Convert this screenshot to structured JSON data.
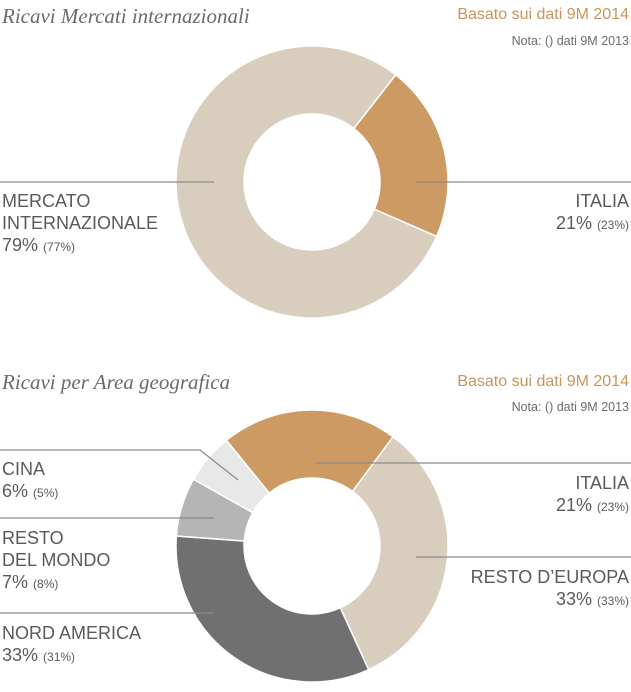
{
  "chart_data": [
    {
      "type": "pie",
      "title": "Ricavi Mercati internazionali",
      "basis": "Basato sui dati 9M 2014",
      "note": "Nota: () dati 9M 2013",
      "slices": [
        {
          "label": "ITALIA",
          "label_lines": [
            "ITALIA"
          ],
          "value": 21,
          "value_text": "21%",
          "prev_text": "(23%)",
          "color": "#cc9a62"
        },
        {
          "label": "MERCATO INTERNAZIONALE",
          "label_lines": [
            "MERCATO",
            "INTERNAZIONALE"
          ],
          "value": 79,
          "value_text": "79%",
          "prev_text": "(77%)",
          "color": "#d9cebe"
        }
      ]
    },
    {
      "type": "pie",
      "title": "Ricavi per Area geografica",
      "basis": "Basato sui dati 9M 2014",
      "note": "Nota: () dati 9M 2013",
      "slices": [
        {
          "label": "ITALIA",
          "label_lines": [
            "ITALIA"
          ],
          "value": 21,
          "value_text": "21%",
          "prev_text": "(23%)",
          "color": "#cc9a62"
        },
        {
          "label": "RESTO D'EUROPA",
          "label_lines": [
            "RESTO D’EUROPA"
          ],
          "value": 33,
          "value_text": "33%",
          "prev_text": "(33%)",
          "color": "#d9cebe"
        },
        {
          "label": "NORD AMERICA",
          "label_lines": [
            "NORD AMERICA"
          ],
          "value": 33,
          "value_text": "33%",
          "prev_text": "(31%)",
          "color": "#707070"
        },
        {
          "label": "RESTO DEL MONDO",
          "label_lines": [
            "RESTO",
            "DEL MONDO"
          ],
          "value": 7,
          "value_text": "7%",
          "prev_text": "(8%)",
          "color": "#b5b5b5"
        },
        {
          "label": "CINA",
          "label_lines": [
            "CINA"
          ],
          "value": 6,
          "value_text": "6%",
          "prev_text": "(5%)",
          "color": "#e8e8e8"
        }
      ]
    }
  ]
}
